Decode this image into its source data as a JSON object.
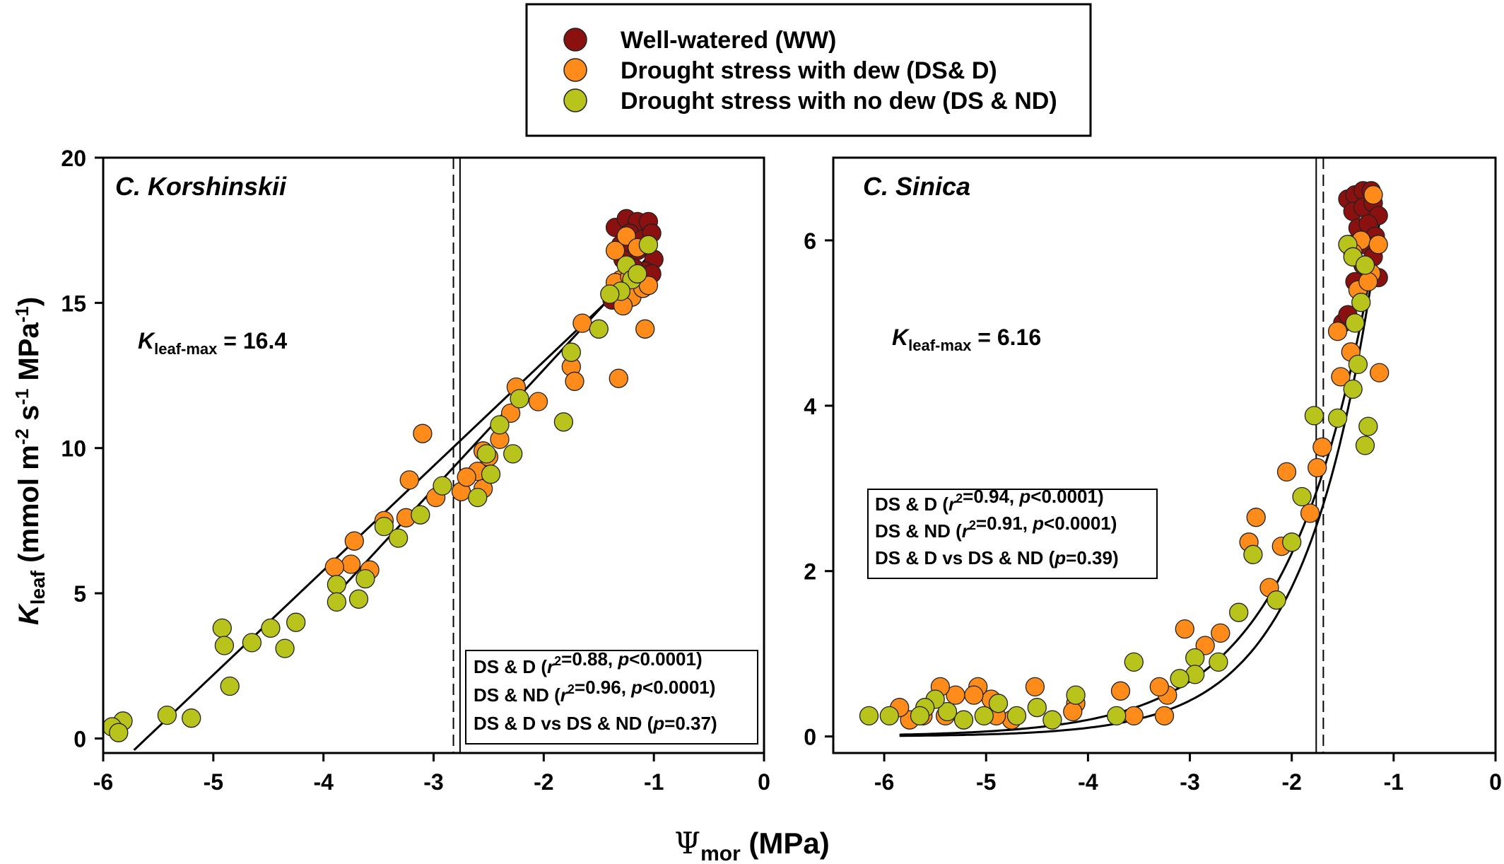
{
  "legend": {
    "items": [
      {
        "label": "Well-watered (WW)",
        "color": "#8B1010"
      },
      {
        "label": "Drought stress with dew (DS& D)",
        "color": "#FF8C1A"
      },
      {
        "label": "Drought stress with no dew (DS & ND)",
        "color": "#B8C41C"
      }
    ]
  },
  "axes": {
    "ylabel_main": "K",
    "ylabel_sub": "leaf",
    "ylabel_units": " (mmol m",
    "ylabel_exp1": "-2",
    "ylabel_mid": " s",
    "ylabel_exp2": "-1",
    "ylabel_mid2": " MPa",
    "ylabel_exp3": "-1",
    "ylabel_end": ")",
    "xlabel_main": "Ψ",
    "xlabel_sub": "mor",
    "xlabel_units": " (MPa)"
  },
  "chart_data": [
    {
      "type": "scatter",
      "title": "C. Korshinskii",
      "kmax_label": "K",
      "kmax_sub": "leaf-max",
      "kmax_value": " = 16.4",
      "xlim": [
        -6,
        0
      ],
      "ylim": [
        -0.5,
        20
      ],
      "x_ticks": [
        -6,
        -5,
        -4,
        -3,
        -2,
        -1,
        0
      ],
      "y_ticks": [
        0,
        5,
        10,
        15,
        20
      ],
      "vlines": [
        {
          "x": -2.82,
          "style": "dashed"
        },
        {
          "x": -2.76,
          "style": "solid"
        }
      ],
      "stats": [
        [
          "DS & D (",
          "r",
          "2",
          "=0.88, ",
          "p",
          "<0.0001)"
        ],
        [
          "DS & ND (",
          "r",
          "2",
          "=0.96, ",
          "p",
          "<0.0001)"
        ],
        [
          "DS & D vs DS & ND (",
          "p",
          "",
          "=0.37)",
          "",
          ""
        ]
      ],
      "curves": [
        {
          "fit": "linear",
          "points": [
            [
              -5.72,
              -0.4
            ],
            [
              -1.05,
              16.4
            ]
          ]
        },
        {
          "fit": "linear",
          "points": [
            [
              -3.9,
              4.9
            ],
            [
              -1.05,
              16.6
            ]
          ]
        }
      ],
      "series": [
        {
          "name": "Well-watered (WW)",
          "points": [
            [
              -1.35,
              17.6
            ],
            [
              -1.25,
              17.9
            ],
            [
              -1.15,
              17.8
            ],
            [
              -1.05,
              17.8
            ],
            [
              -1.22,
              17.4
            ],
            [
              -1.1,
              17.2
            ],
            [
              -1.3,
              17.0
            ],
            [
              -1.02,
              17.4
            ],
            [
              -1.0,
              16.5
            ],
            [
              -1.15,
              16.8
            ],
            [
              -1.28,
              16.5
            ],
            [
              -1.08,
              16.1
            ],
            [
              -1.18,
              16.2
            ],
            [
              -1.2,
              15.4
            ],
            [
              -1.1,
              15.8
            ],
            [
              -1.38,
              15.1
            ],
            [
              -1.02,
              16.0
            ]
          ]
        },
        {
          "name": "Drought stress with dew (DS& D)",
          "points": [
            [
              -1.35,
              16.8
            ],
            [
              -1.25,
              17.3
            ],
            [
              -1.15,
              16.9
            ],
            [
              -1.3,
              15.8
            ],
            [
              -1.2,
              15.2
            ],
            [
              -1.1,
              15.5
            ],
            [
              -1.05,
              15.6
            ],
            [
              -1.28,
              14.9
            ],
            [
              -1.35,
              15.7
            ],
            [
              -1.22,
              15.9
            ],
            [
              -1.08,
              14.1
            ],
            [
              -1.32,
              12.4
            ],
            [
              -1.65,
              14.3
            ],
            [
              -1.75,
              12.8
            ],
            [
              -1.72,
              12.3
            ],
            [
              -2.05,
              11.6
            ],
            [
              -2.25,
              12.1
            ],
            [
              -2.3,
              11.2
            ],
            [
              -2.4,
              10.3
            ],
            [
              -2.55,
              9.9
            ],
            [
              -2.6,
              9.2
            ],
            [
              -2.5,
              9.7
            ],
            [
              -2.75,
              8.5
            ],
            [
              -2.55,
              8.6
            ],
            [
              -2.7,
              9.0
            ],
            [
              -2.98,
              8.3
            ],
            [
              -3.22,
              8.9
            ],
            [
              -3.1,
              10.5
            ],
            [
              -3.25,
              7.6
            ],
            [
              -3.45,
              7.5
            ],
            [
              -3.58,
              5.8
            ],
            [
              -3.72,
              6.8
            ],
            [
              -3.75,
              6.0
            ],
            [
              -3.9,
              5.9
            ]
          ]
        },
        {
          "name": "Drought stress with no dew (DS & ND)",
          "points": [
            [
              -1.05,
              17.0
            ],
            [
              -1.25,
              16.3
            ],
            [
              -1.2,
              15.8
            ],
            [
              -1.15,
              16.0
            ],
            [
              -1.3,
              15.4
            ],
            [
              -1.4,
              15.3
            ],
            [
              -1.5,
              14.1
            ],
            [
              -1.75,
              13.3
            ],
            [
              -1.82,
              10.9
            ],
            [
              -2.22,
              11.7
            ],
            [
              -2.28,
              9.8
            ],
            [
              -2.4,
              10.8
            ],
            [
              -2.48,
              9.1
            ],
            [
              -2.52,
              9.8
            ],
            [
              -2.6,
              8.3
            ],
            [
              -2.92,
              8.7
            ],
            [
              -3.12,
              7.7
            ],
            [
              -3.32,
              6.9
            ],
            [
              -3.45,
              7.3
            ],
            [
              -3.62,
              5.5
            ],
            [
              -3.68,
              4.8
            ],
            [
              -3.88,
              5.3
            ],
            [
              -3.88,
              4.7
            ],
            [
              -4.25,
              4.0
            ],
            [
              -4.35,
              3.1
            ],
            [
              -4.48,
              3.8
            ],
            [
              -4.65,
              3.3
            ],
            [
              -4.85,
              1.8
            ],
            [
              -4.92,
              3.8
            ],
            [
              -4.9,
              3.2
            ],
            [
              -5.2,
              0.7
            ],
            [
              -5.42,
              0.8
            ],
            [
              -5.82,
              0.6
            ],
            [
              -5.92,
              0.4
            ],
            [
              -5.86,
              0.2
            ]
          ]
        }
      ]
    },
    {
      "type": "scatter",
      "title": "C. Sinica",
      "kmax_label": "K",
      "kmax_sub": "leaf-max",
      "kmax_value": " = 6.16",
      "xlim": [
        -6.5,
        0
      ],
      "ylim": [
        -0.2,
        7
      ],
      "x_ticks": [
        -6,
        -5,
        -4,
        -3,
        -2,
        -1,
        0
      ],
      "y_ticks": [
        0,
        2,
        4,
        6
      ],
      "vlines": [
        {
          "x": -1.76,
          "style": "solid"
        },
        {
          "x": -1.69,
          "style": "dashed"
        }
      ],
      "stats": [
        [
          "DS & D (",
          "r",
          "2",
          "=0.94, ",
          "p",
          "<0.0001)"
        ],
        [
          "DS & ND (",
          "r",
          "2",
          "=0.91, ",
          "p",
          "<0.0001)"
        ],
        [
          "DS & D vs DS & ND (",
          "p",
          "",
          "=0.39)",
          "",
          ""
        ]
      ],
      "curves": [
        {
          "fit": "exponential",
          "a": 31.2,
          "b": 1.425,
          "x_range": [
            -5.85,
            -1.14
          ]
        },
        {
          "fit": "exponential",
          "a": 24.4,
          "b": 1.2,
          "x_range": [
            -5.85,
            -1.14
          ]
        }
      ],
      "series": [
        {
          "name": "Well-watered (WW)",
          "points": [
            [
              -1.45,
              6.5
            ],
            [
              -1.38,
              6.55
            ],
            [
              -1.3,
              6.6
            ],
            [
              -1.22,
              6.6
            ],
            [
              -1.4,
              6.35
            ],
            [
              -1.3,
              6.4
            ],
            [
              -1.2,
              6.45
            ],
            [
              -1.15,
              6.3
            ],
            [
              -1.35,
              6.15
            ],
            [
              -1.25,
              6.2
            ],
            [
              -1.18,
              6.05
            ],
            [
              -1.28,
              5.95
            ],
            [
              -1.42,
              5.95
            ],
            [
              -1.2,
              5.8
            ],
            [
              -1.3,
              5.7
            ],
            [
              -1.15,
              5.55
            ],
            [
              -1.38,
              5.5
            ],
            [
              -1.5,
              5.0
            ],
            [
              -1.45,
              5.1
            ]
          ]
        },
        {
          "name": "Drought stress with dew (DS& D)",
          "points": [
            [
              -1.2,
              6.55
            ],
            [
              -1.32,
              6.0
            ],
            [
              -1.15,
              5.95
            ],
            [
              -1.4,
              5.85
            ],
            [
              -1.22,
              5.6
            ],
            [
              -1.35,
              5.4
            ],
            [
              -1.25,
              5.5
            ],
            [
              -1.42,
              4.65
            ],
            [
              -1.14,
              4.4
            ],
            [
              -1.55,
              4.9
            ],
            [
              -1.52,
              4.35
            ],
            [
              -1.7,
              3.5
            ],
            [
              -1.75,
              3.25
            ],
            [
              -1.82,
              2.7
            ],
            [
              -2.05,
              3.2
            ],
            [
              -2.1,
              2.3
            ],
            [
              -2.22,
              1.8
            ],
            [
              -2.35,
              2.65
            ],
            [
              -2.42,
              2.35
            ],
            [
              -2.7,
              1.25
            ],
            [
              -2.85,
              1.1
            ],
            [
              -3.05,
              1.3
            ],
            [
              -3.22,
              0.5
            ],
            [
              -3.25,
              0.25
            ],
            [
              -3.3,
              0.6
            ],
            [
              -3.55,
              0.25
            ],
            [
              -3.68,
              0.55
            ],
            [
              -4.12,
              0.4
            ],
            [
              -4.15,
              0.3
            ],
            [
              -4.52,
              0.6
            ],
            [
              -4.75,
              0.2
            ],
            [
              -4.9,
              0.25
            ],
            [
              -4.95,
              0.45
            ],
            [
              -5.08,
              0.6
            ],
            [
              -5.12,
              0.5
            ],
            [
              -5.3,
              0.5
            ],
            [
              -5.4,
              0.25
            ],
            [
              -5.45,
              0.6
            ],
            [
              -5.62,
              0.25
            ],
            [
              -5.75,
              0.2
            ],
            [
              -5.85,
              0.35
            ]
          ]
        },
        {
          "name": "Drought stress with no dew (DS & ND)",
          "points": [
            [
              -1.45,
              5.95
            ],
            [
              -1.4,
              5.8
            ],
            [
              -1.28,
              5.7
            ],
            [
              -1.32,
              5.25
            ],
            [
              -1.38,
              5.0
            ],
            [
              -1.35,
              4.5
            ],
            [
              -1.4,
              4.2
            ],
            [
              -1.25,
              3.75
            ],
            [
              -1.28,
              3.52
            ],
            [
              -1.55,
              3.85
            ],
            [
              -1.78,
              3.88
            ],
            [
              -1.9,
              2.9
            ],
            [
              -2.0,
              2.35
            ],
            [
              -2.15,
              1.65
            ],
            [
              -2.38,
              2.2
            ],
            [
              -2.52,
              1.5
            ],
            [
              -2.72,
              0.9
            ],
            [
              -2.95,
              0.95
            ],
            [
              -2.95,
              0.75
            ],
            [
              -3.1,
              0.7
            ],
            [
              -3.55,
              0.9
            ],
            [
              -3.72,
              0.25
            ],
            [
              -4.12,
              0.5
            ],
            [
              -4.35,
              0.2
            ],
            [
              -4.5,
              0.35
            ],
            [
              -4.7,
              0.25
            ],
            [
              -4.88,
              0.4
            ],
            [
              -5.02,
              0.25
            ],
            [
              -5.22,
              0.2
            ],
            [
              -5.38,
              0.3
            ],
            [
              -5.5,
              0.45
            ],
            [
              -5.6,
              0.35
            ],
            [
              -5.65,
              0.25
            ],
            [
              -5.95,
              0.25
            ],
            [
              -6.15,
              0.25
            ]
          ]
        }
      ]
    }
  ]
}
